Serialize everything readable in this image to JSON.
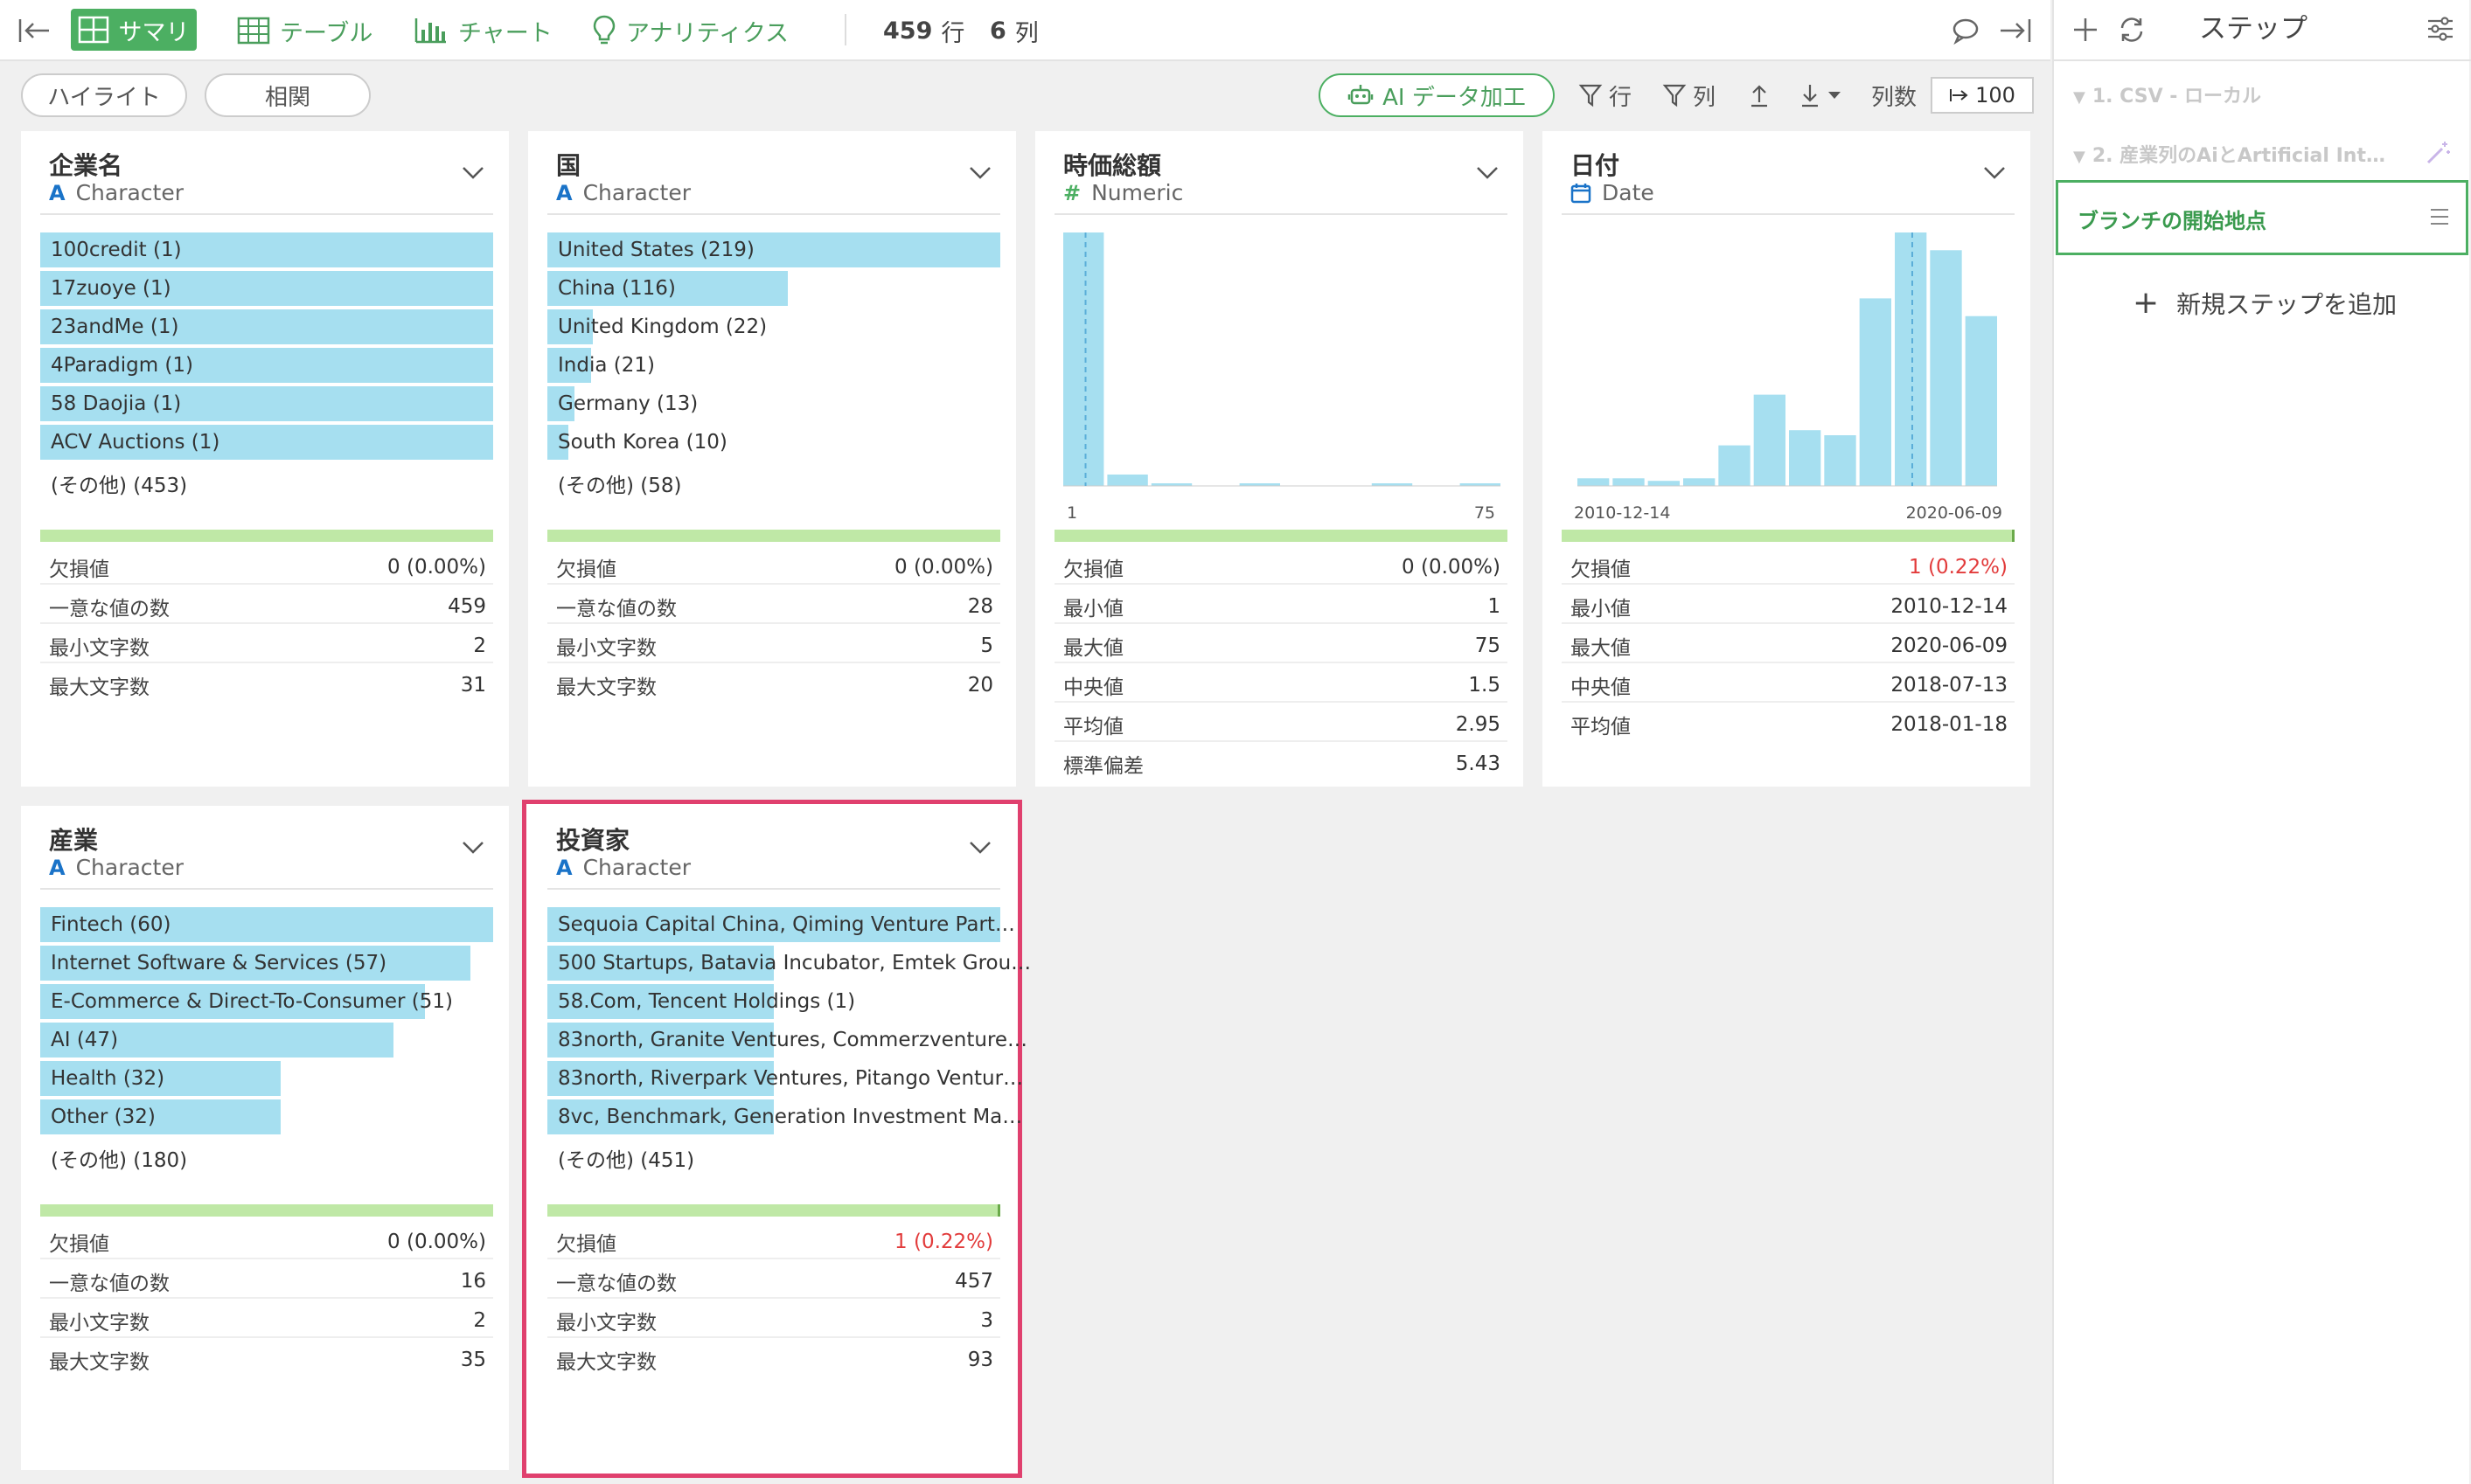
{
  "toolbar": {
    "summary": "サマリ",
    "table": "テーブル",
    "chart": "チャート",
    "analytics": "アナリティクス",
    "rows_count": "459",
    "rows_unit": "行",
    "cols_count": "6",
    "cols_unit": "列"
  },
  "subbar": {
    "highlight": "ハイライト",
    "correlation": "相関",
    "ai_button": "AI データ加工",
    "filter_rows": "行",
    "filter_cols": "列",
    "col_count_label": "列数",
    "col_count_value": "100"
  },
  "stat_labels": {
    "missing": "欠損値",
    "unique": "一意な値の数",
    "min_len": "最小文字数",
    "max_len": "最大文字数",
    "min": "最小値",
    "max": "最大値",
    "median": "中央値",
    "mean": "平均値",
    "std": "標準偏差"
  },
  "columns": {
    "company": {
      "name": "企業名",
      "type_icon": "A",
      "type": "Character",
      "bars": [
        {
          "label": "100credit (1)",
          "fraction": 1.0
        },
        {
          "label": "17zuoye (1)",
          "fraction": 1.0
        },
        {
          "label": "23andMe (1)",
          "fraction": 1.0
        },
        {
          "label": "4Paradigm (1)",
          "fraction": 1.0
        },
        {
          "label": "58 Daojia (1)",
          "fraction": 1.0
        },
        {
          "label": "ACV Auctions (1)",
          "fraction": 1.0
        }
      ],
      "other": "(その他) (453)",
      "stats": {
        "missing": "0 (0.00%)",
        "unique": "459",
        "min_len": "2",
        "max_len": "31"
      }
    },
    "country": {
      "name": "国",
      "type_icon": "A",
      "type": "Character",
      "bars": [
        {
          "label": "United States (219)",
          "fraction": 1.0
        },
        {
          "label": "China (116)",
          "fraction": 0.53
        },
        {
          "label": "United Kingdom (22)",
          "fraction": 0.1
        },
        {
          "label": "India (21)",
          "fraction": 0.096
        },
        {
          "label": "Germany (13)",
          "fraction": 0.06
        },
        {
          "label": "South Korea (10)",
          "fraction": 0.046
        }
      ],
      "other": "(その他) (58)",
      "stats": {
        "missing": "0 (0.00%)",
        "unique": "28",
        "min_len": "5",
        "max_len": "20"
      }
    },
    "market_cap": {
      "name": "時価総額",
      "type_icon": "#",
      "type": "Numeric",
      "hist_values": [
        1.0,
        0.045,
        0.005,
        0.0,
        0.005,
        0.0,
        0.0,
        0.005,
        0.0,
        0.005
      ],
      "axis_min": "1",
      "axis_max": "75",
      "stats": {
        "missing": "0 (0.00%)",
        "min": "1",
        "max": "75",
        "median": "1.5",
        "mean": "2.95",
        "std": "5.43"
      }
    },
    "date": {
      "name": "日付",
      "type_icon": "date",
      "type": "Date",
      "hist_values": [
        0.03,
        0.03,
        0.02,
        0.03,
        0.16,
        0.36,
        0.22,
        0.2,
        0.74,
        1.0,
        0.93,
        0.67
      ],
      "axis_min": "2010-12-14",
      "axis_max": "2020-06-09",
      "stats": {
        "missing": "1 (0.22%)",
        "min": "2010-12-14",
        "max": "2020-06-09",
        "median": "2018-07-13",
        "mean": "2018-01-18"
      }
    },
    "industry": {
      "name": "産業",
      "type_icon": "A",
      "type": "Character",
      "bars": [
        {
          "label": "Fintech (60)",
          "fraction": 1.0
        },
        {
          "label": "Internet Software & Services (57)",
          "fraction": 0.95
        },
        {
          "label": "E-Commerce & Direct-To-Consumer (51)",
          "fraction": 0.85
        },
        {
          "label": "AI (47)",
          "fraction": 0.78
        },
        {
          "label": "Health (32)",
          "fraction": 0.53
        },
        {
          "label": "Other (32)",
          "fraction": 0.53
        }
      ],
      "other": "(その他) (180)",
      "stats": {
        "missing": "0 (0.00%)",
        "unique": "16",
        "min_len": "2",
        "max_len": "35"
      }
    },
    "investors": {
      "name": "投資家",
      "type_icon": "A",
      "type": "Character",
      "bars": [
        {
          "label": "Sequoia Capital China, Qiming Venture Part…",
          "fraction": 1.0
        },
        {
          "label": "500 Startups, Batavia Incubator, Emtek Grou…",
          "fraction": 0.5
        },
        {
          "label": "58.Com, Tencent Holdings (1)",
          "fraction": 0.5
        },
        {
          "label": "83north, Granite Ventures, Commerzventure…",
          "fraction": 0.5
        },
        {
          "label": "83north, Riverpark Ventures, Pitango Ventur…",
          "fraction": 0.5
        },
        {
          "label": "8vc, Benchmark, Generation Investment Ma…",
          "fraction": 0.5
        }
      ],
      "other": "(その他) (451)",
      "stats": {
        "missing": "1 (0.22%)",
        "unique": "457",
        "min_len": "3",
        "max_len": "93"
      }
    }
  },
  "steps_panel": {
    "title": "ステップ",
    "steps": [
      "1. CSV - ローカル",
      "2. 産業列のAiとArtificial Int…"
    ],
    "active_step": "ブランチの開始地点",
    "add_step": "新規ステップを追加"
  },
  "colors": {
    "accent": "#4caf62",
    "bar": "#a6dff0",
    "selected": "#e0406e",
    "missing_red": "#e23b3b"
  }
}
